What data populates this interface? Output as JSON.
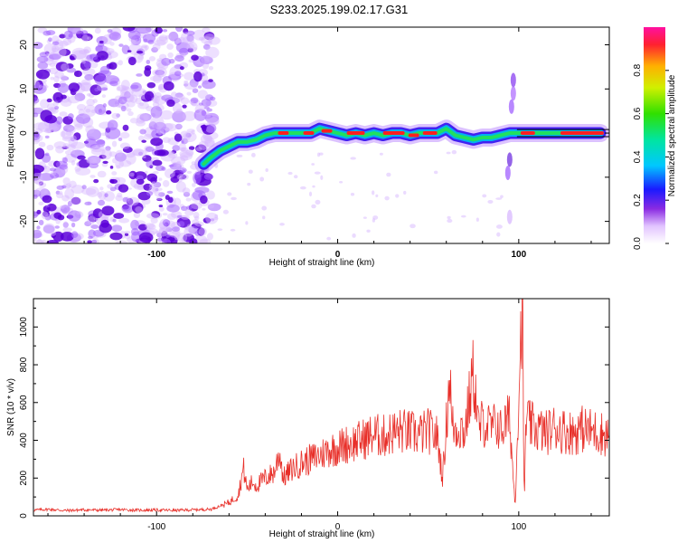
{
  "title": "S233.2025.199.02.17.G31",
  "chart_data": [
    {
      "type": "heatmap",
      "xlabel": "Height of straight line (km)",
      "ylabel": "Frequency (Hz)",
      "xlim": [
        -168,
        150
      ],
      "ylim": [
        -25,
        24
      ],
      "xticks": [
        -100,
        0,
        100
      ],
      "yticks": [
        20,
        10,
        0,
        -10,
        -20
      ],
      "ridge": [
        [
          -74,
          -7
        ],
        [
          -70,
          -5.5
        ],
        [
          -65,
          -4
        ],
        [
          -60,
          -3
        ],
        [
          -55,
          -2
        ],
        [
          -50,
          -2
        ],
        [
          -45,
          -1.5
        ],
        [
          -40,
          -0.5
        ],
        [
          -35,
          0
        ],
        [
          -30,
          0
        ],
        [
          -25,
          0
        ],
        [
          -20,
          0
        ],
        [
          -15,
          0
        ],
        [
          -10,
          1
        ],
        [
          -5,
          0.5
        ],
        [
          0,
          0
        ],
        [
          5,
          -0.5
        ],
        [
          10,
          0
        ],
        [
          15,
          -0.5
        ],
        [
          20,
          0
        ],
        [
          25,
          -0.5
        ],
        [
          30,
          0
        ],
        [
          35,
          0
        ],
        [
          40,
          -0.5
        ],
        [
          45,
          0
        ],
        [
          50,
          0
        ],
        [
          55,
          0
        ],
        [
          60,
          1
        ],
        [
          65,
          -0.5
        ],
        [
          70,
          -1
        ],
        [
          75,
          -1.5
        ],
        [
          80,
          -1
        ],
        [
          85,
          -1
        ],
        [
          90,
          -0.5
        ],
        [
          95,
          0
        ],
        [
          100,
          0
        ],
        [
          105,
          0
        ],
        [
          110,
          0
        ],
        [
          115,
          0
        ],
        [
          120,
          0
        ],
        [
          125,
          0
        ],
        [
          130,
          0
        ],
        [
          135,
          0
        ],
        [
          140,
          0
        ],
        [
          145,
          0
        ]
      ]
    },
    {
      "type": "line",
      "xlabel": "Height of straight line (km)",
      "ylabel": "SNR (10 * v/v)",
      "xlim": [
        -168,
        150
      ],
      "ylim": [
        0,
        1150
      ],
      "xticks": [
        -100,
        0,
        100
      ],
      "yticks": [
        0,
        200,
        400,
        600,
        800,
        1000
      ],
      "series": [
        {
          "color": "#e8302a",
          "x": [
            -168,
            -160,
            -150,
            -140,
            -130,
            -120,
            -110,
            -100,
            -90,
            -80,
            -70,
            -60,
            -55,
            -52,
            -50,
            -47,
            -45,
            -40,
            -35,
            -32,
            -30,
            -25,
            -20,
            -15,
            -10,
            -5,
            0,
            5,
            10,
            15,
            20,
            25,
            30,
            35,
            40,
            45,
            50,
            55,
            58,
            60,
            62,
            63,
            65,
            68,
            70,
            75,
            78,
            80,
            85,
            88,
            90,
            95,
            98,
            100,
            102,
            103,
            104,
            106,
            110,
            115,
            120,
            125,
            130,
            135,
            140,
            145,
            150
          ],
          "y": [
            30,
            35,
            28,
            32,
            30,
            33,
            30,
            31,
            29,
            32,
            35,
            70,
            110,
            250,
            140,
            180,
            160,
            200,
            230,
            340,
            200,
            250,
            280,
            300,
            320,
            350,
            360,
            380,
            390,
            410,
            430,
            420,
            440,
            450,
            440,
            430,
            450,
            420,
            200,
            480,
            780,
            480,
            460,
            470,
            440,
            760,
            450,
            500,
            460,
            490,
            450,
            520,
            50,
            660,
            1150,
            40,
            520,
            480,
            460,
            440,
            470,
            450,
            440,
            460,
            450,
            440,
            420
          ]
        }
      ]
    }
  ],
  "colorbar": {
    "label": "Normalized spectral amplitude",
    "ticks": [
      0.0,
      0.2,
      0.4,
      0.6,
      0.8
    ],
    "range": [
      0,
      1
    ]
  }
}
